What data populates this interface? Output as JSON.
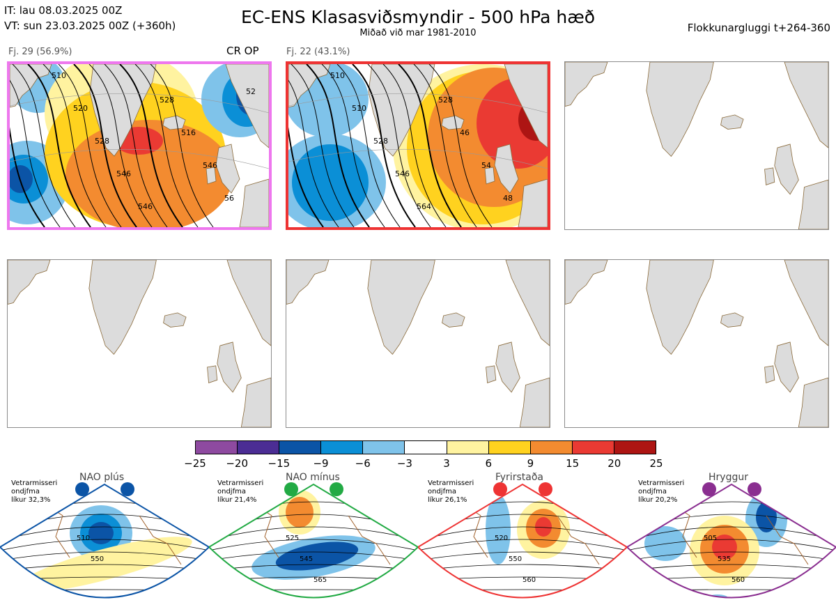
{
  "header": {
    "it_line": "IT: lau 08.03.2025 00Z",
    "vt_line": "VT: sun 23.03.2025 00Z  (+360h)",
    "title": "EC-ENS Klasasviðsmyndir - 500 hPa hæð",
    "subtitle": "Miðað við mar 1981-2010",
    "window": "Flokkunargluggi t+264-360"
  },
  "panels": [
    {
      "label": "Fj. 29 (56.9%)",
      "tag": "CR OP",
      "border_color": "#ee77ee",
      "contour_labels": [
        "510",
        "520",
        "528",
        "546",
        "546",
        "528",
        "516",
        "546",
        "56",
        "52"
      ]
    },
    {
      "label": "Fj. 22 (43.1%)",
      "tag": "",
      "border_color": "#ee3333",
      "contour_labels": [
        "510",
        "510",
        "528",
        "546",
        "564",
        "528",
        "46",
        "54",
        "48"
      ]
    },
    {
      "label": "",
      "tag": "",
      "border_color": "#8a8a8a",
      "contour_labels": []
    },
    {
      "label": "",
      "tag": "",
      "border_color": "#8a8a8a",
      "contour_labels": []
    },
    {
      "label": "",
      "tag": "",
      "border_color": "#8a8a8a",
      "contour_labels": []
    },
    {
      "label": "",
      "tag": "",
      "border_color": "#8a8a8a",
      "contour_labels": []
    }
  ],
  "colorbar": {
    "ticks": [
      "−25",
      "−20",
      "−15",
      "−9",
      "−6",
      "−3",
      "3",
      "6",
      "9",
      "15",
      "20",
      "25"
    ],
    "colors": [
      "#8e4aa0",
      "#4b2d94",
      "#0b54a6",
      "#0b8fd6",
      "#7fc3ea",
      "#ffffff",
      "#fff3a0",
      "#ffd21f",
      "#f38b30",
      "#ea3a33",
      "#ad1513"
    ]
  },
  "regimes": [
    {
      "name": "NAO plús",
      "prob_text": "Vetrarmisseri\nondjfma\nlíkur 32,3%",
      "color": "#0b54a6",
      "contour_labels": [
        "510",
        "550"
      ]
    },
    {
      "name": "NAO mínus",
      "prob_text": "Vetrarmisseri\nondjfma\nlíkur 21,4%",
      "color": "#22aa44",
      "contour_labels": [
        "525",
        "545",
        "565"
      ]
    },
    {
      "name": "Fyrirstaða",
      "prob_text": "Vetrarmisseri\nondjfma\nlíkur 26,1%",
      "color": "#ee3333",
      "contour_labels": [
        "520",
        "550",
        "560"
      ]
    },
    {
      "name": "Hryggur",
      "prob_text": "Vetrarmisseri\nondjfma\nlíkur 20,2%",
      "color": "#8a2e90",
      "contour_labels": [
        "505",
        "535",
        "560"
      ]
    }
  ],
  "icons": {
    "land": "greenland-landmass",
    "anomaly": "anomaly-blob"
  }
}
